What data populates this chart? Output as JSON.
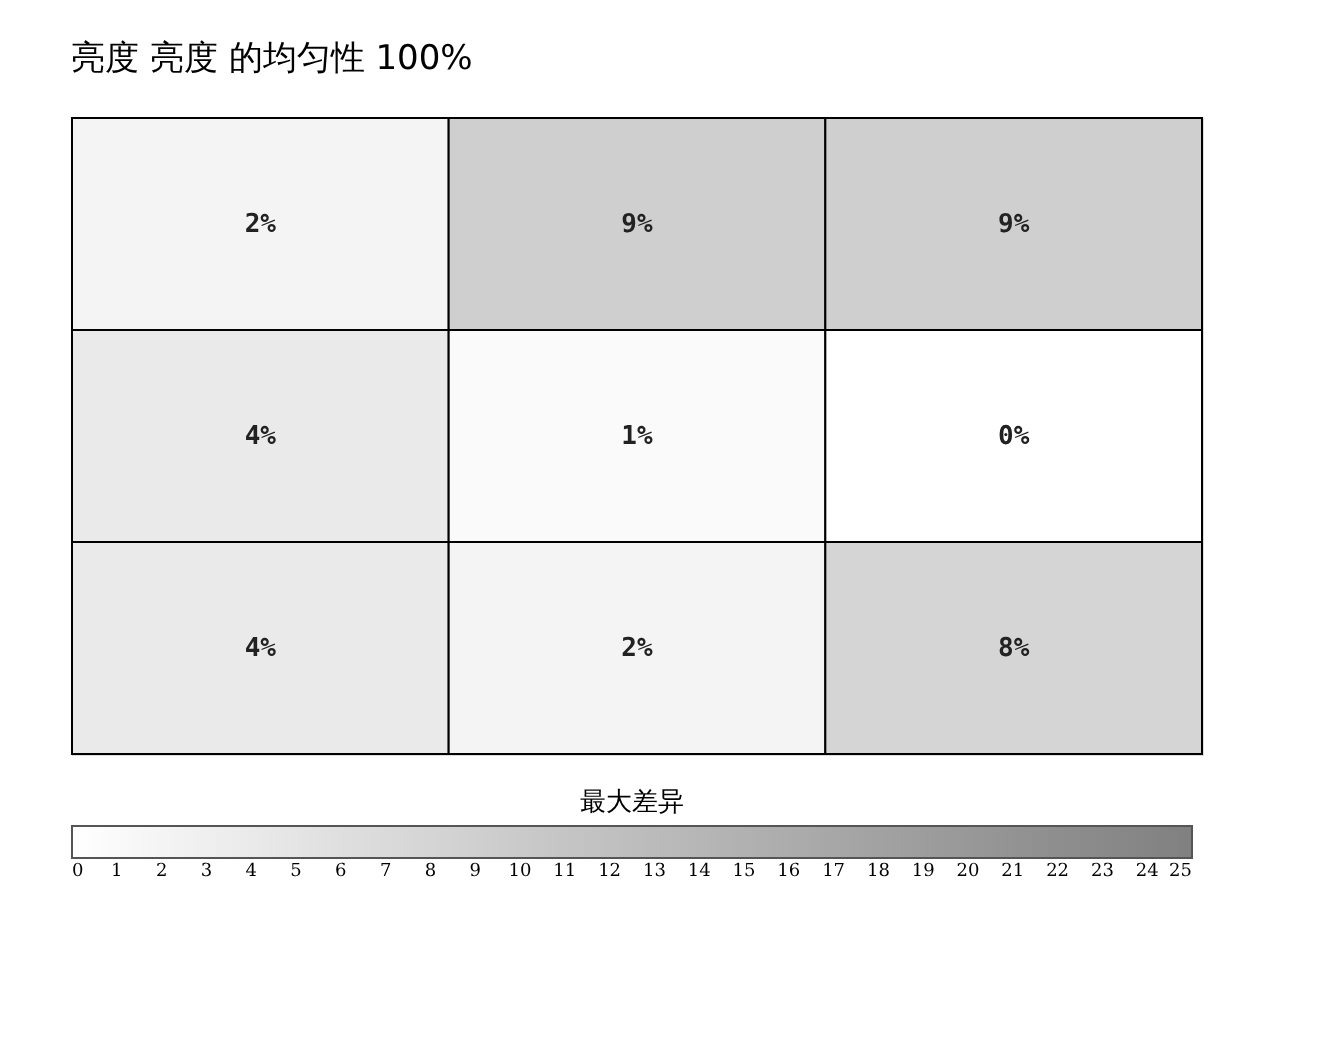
{
  "chart_data": {
    "type": "heatmap",
    "title": "亮度 亮度 的均匀性 100%",
    "clabel": "最大差异",
    "categories": [
      null,
      null,
      null
    ],
    "y_categories": [
      null,
      null,
      null
    ],
    "cells": [
      [
        2,
        9,
        9
      ],
      [
        4,
        1,
        0
      ],
      [
        4,
        2,
        8
      ]
    ],
    "cell_labels": [
      [
        "2%",
        "9%",
        "9%"
      ],
      [
        "4%",
        "1%",
        "0%"
      ],
      [
        "4%",
        "2%",
        "8%"
      ]
    ],
    "colors": [
      "#ffffff",
      "#808080"
    ],
    "clim": [
      0,
      25
    ],
    "cticks": [
      0,
      1,
      2,
      3,
      4,
      5,
      6,
      7,
      8,
      9,
      10,
      11,
      12,
      13,
      14,
      15,
      16,
      17,
      18,
      19,
      20,
      21,
      22,
      23,
      24,
      25
    ],
    "tick_labels": false
  }
}
